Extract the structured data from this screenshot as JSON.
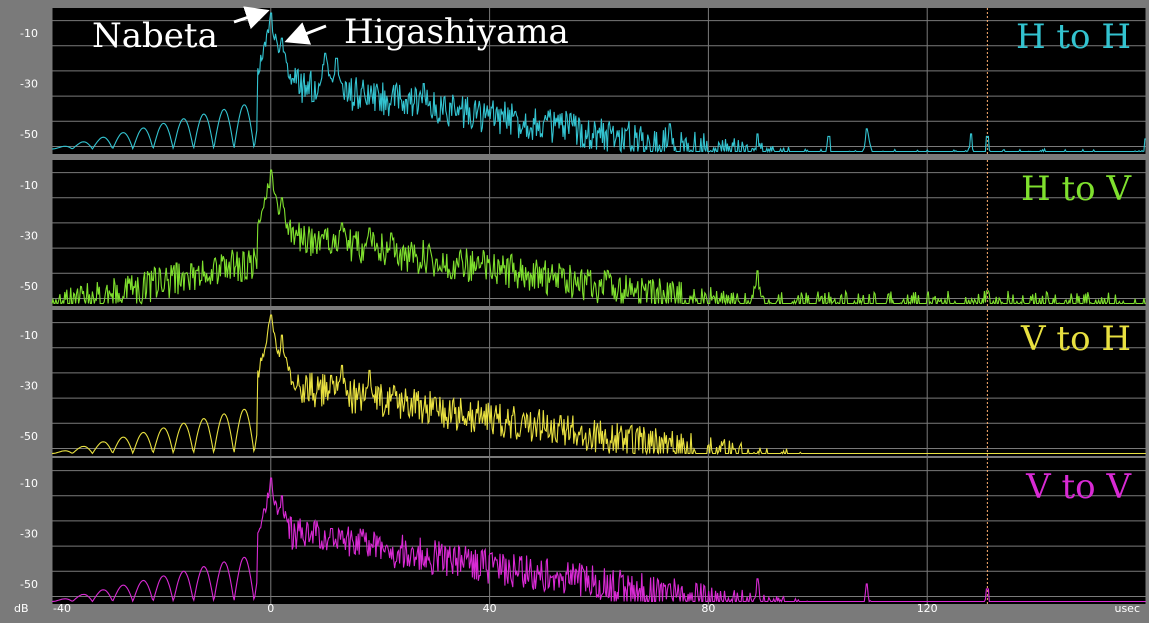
{
  "axis": {
    "y_unit": "dB",
    "x_unit": "usec",
    "x_ticks": [
      "-40",
      "0",
      "40",
      "80",
      "120"
    ],
    "y_ticks": [
      "-10",
      "-30",
      "-50"
    ]
  },
  "annotations": {
    "left": "Nabeta",
    "right": "Higashiyama"
  },
  "colors": {
    "background": "#000000",
    "frame": "#7a7a7a",
    "grid": "#7a7a7a",
    "marker": "#ffb070"
  },
  "chart_data": {
    "type": "line",
    "x_range": [
      -40,
      160
    ],
    "y_range": [
      -58,
      0
    ],
    "y_ticks": [
      -10,
      -30,
      -50
    ],
    "x_ticks": [
      -40,
      0,
      40,
      80,
      120
    ],
    "vertical_marker_x": 131,
    "grid": true,
    "series": [
      {
        "name": "H to H",
        "color": "#33c3d0",
        "peaks": [
          [
            0,
            -2
          ],
          [
            2,
            -12
          ],
          [
            4,
            -28
          ],
          [
            10,
            -18
          ],
          [
            12,
            -20
          ],
          [
            28,
            -30
          ],
          [
            73,
            -46
          ],
          [
            89,
            -50
          ],
          [
            102,
            -51
          ],
          [
            109,
            -48
          ],
          [
            128,
            -50
          ],
          [
            131,
            -51
          ],
          [
            160,
            -52
          ]
        ],
        "floor": -56,
        "rise_start": -40,
        "ripple_left": true
      },
      {
        "name": "H to V",
        "color": "#7fe02e",
        "peaks": [
          [
            0,
            -4
          ],
          [
            2,
            -15
          ],
          [
            5,
            -30
          ],
          [
            10,
            -28
          ],
          [
            13,
            -25
          ],
          [
            18,
            -27
          ],
          [
            22,
            -29
          ],
          [
            53,
            -43
          ],
          [
            89,
            -44
          ],
          [
            131,
            -52
          ]
        ],
        "floor": -52,
        "rise_start": -40,
        "ripple_left": false
      },
      {
        "name": "V to H",
        "color": "#e8e040",
        "peaks": [
          [
            0,
            -2
          ],
          [
            2,
            -10
          ],
          [
            5,
            -30
          ],
          [
            11,
            -26
          ],
          [
            13,
            -22
          ],
          [
            18,
            -24
          ],
          [
            30,
            -35
          ],
          [
            53,
            -42
          ],
          [
            73,
            -51
          ]
        ],
        "floor": -57,
        "rise_start": -40,
        "ripple_left": true
      },
      {
        "name": "V to V",
        "color": "#d92ad4",
        "peaks": [
          [
            0,
            -8
          ],
          [
            2,
            -15
          ],
          [
            11,
            -28
          ],
          [
            13,
            -29
          ],
          [
            17,
            -31
          ],
          [
            30,
            -40
          ],
          [
            73,
            -50
          ],
          [
            89,
            -48
          ],
          [
            109,
            -50
          ],
          [
            131,
            -52
          ]
        ],
        "floor": -57,
        "rise_start": -40,
        "ripple_left": true
      }
    ]
  }
}
